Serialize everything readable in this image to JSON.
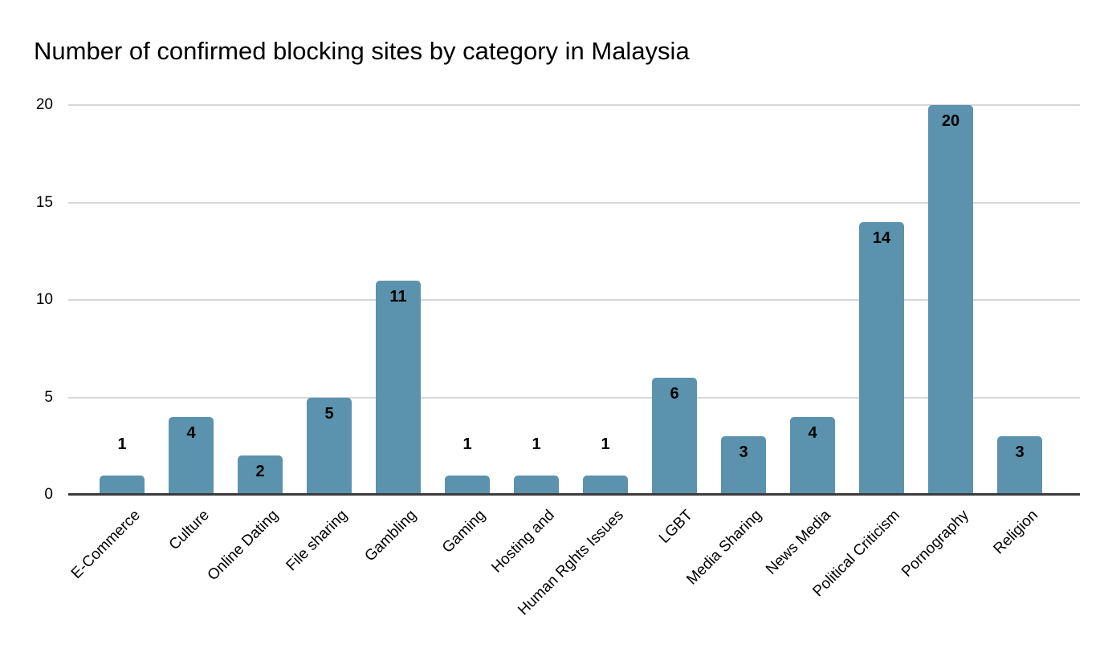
{
  "title": "Number of confirmed blocking sites by category in Malaysia",
  "chart_data": {
    "type": "bar",
    "title": "Number of confirmed blocking sites by category in Malaysia",
    "categories": [
      "E-Commerce",
      "Culture",
      "Online Dating",
      "File sharing",
      "Gambling",
      "Gaming",
      "Hosting and",
      "Human Rghts Issues",
      "LGBT",
      "Media Sharing",
      "News Media",
      "Political Criticism",
      "Pornography",
      "Religion"
    ],
    "values": [
      1,
      4,
      2,
      5,
      11,
      1,
      1,
      1,
      6,
      3,
      4,
      14,
      20,
      3
    ],
    "data_labels": [
      "1",
      "4",
      "2",
      "5",
      "11",
      "1",
      "1",
      "1",
      "6",
      "3",
      "4",
      "14",
      "20",
      "3"
    ],
    "xlabel": "",
    "ylabel": "",
    "ylim": [
      0,
      20
    ],
    "yticks": [
      "0",
      "5",
      "10",
      "15",
      "20"
    ],
    "grid": true,
    "legend": "none",
    "colors": {
      "bar": "#5b92ad",
      "gridline": "#d7d7d7",
      "axis_line": "#3b3b3b",
      "text": "#000000"
    }
  }
}
